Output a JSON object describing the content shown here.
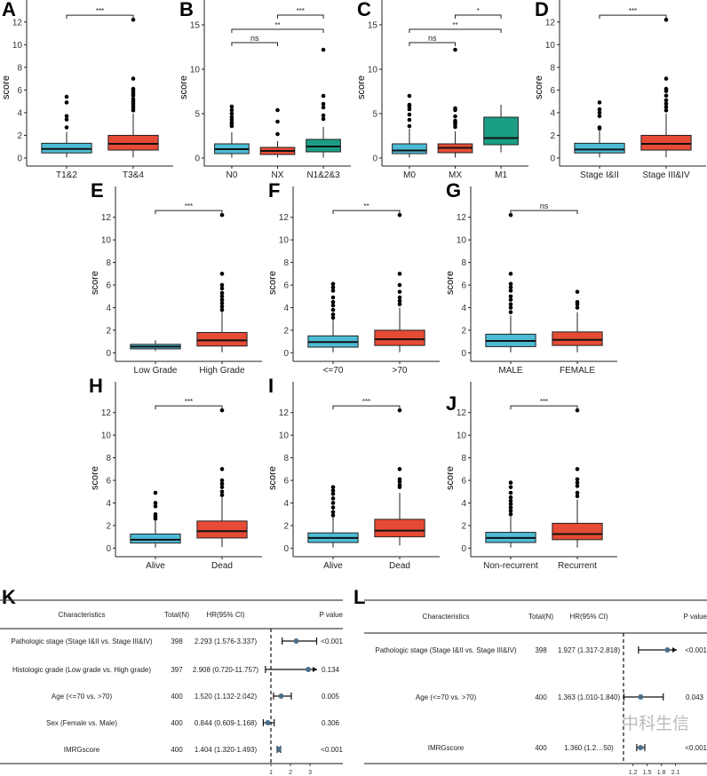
{
  "colors": {
    "blue": "#4DBBD5",
    "red": "#E64B35",
    "green": "#1A9E85"
  },
  "chart_data": [
    {
      "type": "box",
      "panel": "A",
      "ylabel": "score",
      "ylim": [
        -0.55,
        13.0
      ],
      "yticks": [
        0,
        2,
        4,
        6,
        8,
        10,
        12
      ],
      "groups": [
        {
          "name": "T1&2",
          "color": "blue",
          "q1": 0.45,
          "median": 0.8,
          "q3": 1.3,
          "lo": 0.05,
          "hi": 2.3,
          "outliers": [
            2.7,
            3.4,
            3.7,
            4.9,
            5.4
          ]
        },
        {
          "name": "T3&4",
          "color": "red",
          "q1": 0.7,
          "median": 1.25,
          "q3": 2.0,
          "lo": 0.05,
          "hi": 3.9,
          "outliers": [
            4.2,
            4.4,
            4.6,
            4.8,
            5.0,
            5.2,
            5.5,
            5.7,
            5.9,
            6.1,
            7.0,
            12.2
          ]
        }
      ],
      "comparisons": [
        {
          "from": 0,
          "to": 1,
          "y": 12.6,
          "label": "***"
        }
      ]
    },
    {
      "type": "box",
      "panel": "B",
      "ylabel": "score",
      "ylim": [
        -0.7,
        16.6
      ],
      "yticks": [
        0,
        5,
        10,
        15
      ],
      "groups": [
        {
          "name": "N0",
          "color": "blue",
          "q1": 0.5,
          "median": 1.0,
          "q3": 1.6,
          "lo": 0.05,
          "hi": 2.9,
          "outliers": [
            3.6,
            3.8,
            4.0,
            4.3,
            4.6,
            5.0,
            5.4,
            5.8
          ]
        },
        {
          "name": "NX",
          "color": "red",
          "q1": 0.4,
          "median": 0.8,
          "q3": 1.2,
          "lo": 0.05,
          "hi": 1.9,
          "outliers": [
            2.7,
            4.1,
            5.4
          ]
        },
        {
          "name": "N1&2&3",
          "color": "green",
          "q1": 0.7,
          "median": 1.3,
          "q3": 2.1,
          "lo": 0.05,
          "hi": 3.5,
          "outliers": [
            4.4,
            4.8,
            5.7,
            6.1,
            7.0,
            12.2
          ]
        }
      ],
      "comparisons": [
        {
          "from": 0,
          "to": 1,
          "y": 13.0,
          "label": "ns"
        },
        {
          "from": 0,
          "to": 2,
          "y": 14.5,
          "label": "**"
        },
        {
          "from": 1,
          "to": 2,
          "y": 16.1,
          "label": "***"
        }
      ]
    },
    {
      "type": "box",
      "panel": "C",
      "ylabel": "score",
      "ylim": [
        -0.7,
        16.6
      ],
      "yticks": [
        0,
        5,
        10,
        15
      ],
      "groups": [
        {
          "name": "M0",
          "color": "blue",
          "q1": 0.5,
          "median": 0.85,
          "q3": 1.6,
          "lo": 0.05,
          "hi": 3.3,
          "outliers": [
            3.6,
            4.3,
            4.9,
            5.5,
            5.8,
            6.0,
            7.0
          ]
        },
        {
          "name": "MX",
          "color": "red",
          "q1": 0.6,
          "median": 1.15,
          "q3": 1.6,
          "lo": 0.05,
          "hi": 3.0,
          "outliers": [
            3.5,
            3.8,
            4.0,
            4.2,
            4.7,
            5.4,
            5.6,
            12.2
          ]
        },
        {
          "name": "M1",
          "color": "green",
          "q1": 1.5,
          "median": 2.25,
          "q3": 4.6,
          "lo": 0.65,
          "hi": 6.0,
          "outliers": []
        }
      ],
      "comparisons": [
        {
          "from": 0,
          "to": 1,
          "y": 13.0,
          "label": "ns"
        },
        {
          "from": 0,
          "to": 2,
          "y": 14.5,
          "label": "**"
        },
        {
          "from": 1,
          "to": 2,
          "y": 16.1,
          "label": "*"
        }
      ]
    },
    {
      "type": "box",
      "panel": "D",
      "ylabel": "score",
      "ylim": [
        -0.55,
        13.0
      ],
      "yticks": [
        0,
        2,
        4,
        6,
        8,
        10,
        12
      ],
      "groups": [
        {
          "name": "Stage I&II",
          "color": "blue",
          "q1": 0.45,
          "median": 0.75,
          "q3": 1.3,
          "lo": 0.05,
          "hi": 2.4,
          "outliers": [
            2.6,
            2.7,
            3.7,
            4.0,
            4.3,
            4.9
          ]
        },
        {
          "name": "Stage III&IV",
          "color": "red",
          "q1": 0.7,
          "median": 1.25,
          "q3": 2.0,
          "lo": 0.05,
          "hi": 3.9,
          "outliers": [
            4.2,
            4.5,
            4.8,
            5.1,
            5.5,
            5.9,
            6.1,
            7.0,
            12.2
          ]
        }
      ],
      "comparisons": [
        {
          "from": 0,
          "to": 1,
          "y": 12.6,
          "label": "***"
        }
      ]
    },
    {
      "type": "box",
      "panel": "E",
      "ylabel": "score",
      "ylim": [
        -0.6,
        13.0
      ],
      "yticks": [
        0,
        2,
        4,
        6,
        8,
        10,
        12
      ],
      "groups": [
        {
          "name": "Low Grade",
          "color": "blue",
          "q1": 0.35,
          "median": 0.55,
          "q3": 0.75,
          "lo": 0.15,
          "hi": 1.1,
          "outliers": []
        },
        {
          "name": "High Grade",
          "color": "red",
          "q1": 0.6,
          "median": 1.1,
          "q3": 1.8,
          "lo": 0.05,
          "hi": 3.6,
          "outliers": [
            3.8,
            4.1,
            4.4,
            4.7,
            5.0,
            5.3,
            5.7,
            6.0,
            7.0,
            12.2
          ]
        }
      ],
      "comparisons": [
        {
          "from": 0,
          "to": 1,
          "y": 12.6,
          "label": "***"
        }
      ]
    },
    {
      "type": "box",
      "panel": "F",
      "ylabel": "score",
      "ylim": [
        -0.6,
        13.0
      ],
      "yticks": [
        0,
        2,
        4,
        6,
        8,
        10,
        12
      ],
      "groups": [
        {
          "name": "<=70",
          "color": "blue",
          "q1": 0.5,
          "median": 0.95,
          "q3": 1.5,
          "lo": 0.05,
          "hi": 2.9,
          "outliers": [
            3.1,
            3.4,
            3.8,
            4.2,
            4.5,
            4.9,
            5.5,
            5.8,
            6.1
          ]
        },
        {
          "name": ">70",
          "color": "red",
          "q1": 0.65,
          "median": 1.2,
          "q3": 2.0,
          "lo": 0.05,
          "hi": 4.0,
          "outliers": [
            4.3,
            4.6,
            4.9,
            5.4,
            6.0,
            7.0,
            12.2
          ]
        }
      ],
      "comparisons": [
        {
          "from": 0,
          "to": 1,
          "y": 12.6,
          "label": "**"
        }
      ]
    },
    {
      "type": "box",
      "panel": "G",
      "ylabel": "score",
      "ylim": [
        -0.6,
        13.0
      ],
      "yticks": [
        0,
        2,
        4,
        6,
        8,
        10,
        12
      ],
      "groups": [
        {
          "name": "MALE",
          "color": "blue",
          "q1": 0.55,
          "median": 1.05,
          "q3": 1.65,
          "lo": 0.05,
          "hi": 3.3,
          "outliers": [
            3.6,
            4.0,
            4.3,
            4.7,
            5.0,
            5.5,
            5.8,
            6.1,
            7.0,
            12.2
          ]
        },
        {
          "name": "FEMALE",
          "color": "red",
          "q1": 0.65,
          "median": 1.15,
          "q3": 1.85,
          "lo": 0.05,
          "hi": 3.6,
          "outliers": [
            4.0,
            4.3,
            4.5,
            5.4
          ]
        }
      ],
      "comparisons": [
        {
          "from": 0,
          "to": 1,
          "y": 12.6,
          "label": "ns"
        }
      ]
    },
    {
      "type": "box",
      "panel": "H",
      "ylabel": "score",
      "ylim": [
        -0.6,
        13.0
      ],
      "yticks": [
        0,
        2,
        4,
        6,
        8,
        10,
        12
      ],
      "groups": [
        {
          "name": "Alive",
          "color": "blue",
          "q1": 0.45,
          "median": 0.75,
          "q3": 1.25,
          "lo": 0.05,
          "hi": 2.4,
          "outliers": [
            2.6,
            2.8,
            3.0,
            3.7,
            4.0,
            4.9
          ]
        },
        {
          "name": "Dead",
          "color": "red",
          "q1": 0.9,
          "median": 1.5,
          "q3": 2.4,
          "lo": 0.1,
          "hi": 4.5,
          "outliers": [
            4.7,
            5.0,
            5.4,
            5.7,
            6.0,
            7.0,
            12.2
          ]
        }
      ],
      "comparisons": [
        {
          "from": 0,
          "to": 1,
          "y": 12.6,
          "label": "***"
        }
      ]
    },
    {
      "type": "box",
      "panel": "I",
      "ylabel": "score",
      "ylim": [
        -0.6,
        13.0
      ],
      "yticks": [
        0,
        2,
        4,
        6,
        8,
        10,
        12
      ],
      "groups": [
        {
          "name": "Alive",
          "color": "blue",
          "q1": 0.5,
          "median": 0.9,
          "q3": 1.35,
          "lo": 0.05,
          "hi": 2.7,
          "outliers": [
            2.9,
            3.2,
            3.6,
            4.0,
            4.4,
            4.8,
            5.1,
            5.4
          ]
        },
        {
          "name": "Dead",
          "color": "red",
          "q1": 1.0,
          "median": 1.55,
          "q3": 2.55,
          "lo": 0.25,
          "hi": 4.9,
          "outliers": [
            5.4,
            5.6,
            5.9,
            6.1,
            7.0,
            12.2
          ]
        }
      ],
      "comparisons": [
        {
          "from": 0,
          "to": 1,
          "y": 12.6,
          "label": "***"
        }
      ]
    },
    {
      "type": "box",
      "panel": "J",
      "ylabel": "score",
      "ylim": [
        -0.6,
        13.0
      ],
      "yticks": [
        0,
        2,
        4,
        6,
        8,
        10,
        12
      ],
      "groups": [
        {
          "name": "Non-recurrent",
          "color": "blue",
          "q1": 0.5,
          "median": 0.9,
          "q3": 1.4,
          "lo": 0.05,
          "hi": 2.8,
          "outliers": [
            3.0,
            3.3,
            3.6,
            3.9,
            4.2,
            4.5,
            4.9,
            5.4,
            5.8
          ]
        },
        {
          "name": "Recurrent",
          "color": "red",
          "q1": 0.75,
          "median": 1.25,
          "q3": 2.2,
          "lo": 0.05,
          "hi": 4.3,
          "outliers": [
            4.6,
            4.9,
            5.5,
            5.8,
            6.1,
            7.0,
            12.2
          ]
        }
      ],
      "comparisons": [
        {
          "from": 0,
          "to": 1,
          "y": 12.6,
          "label": "***"
        }
      ]
    },
    {
      "type": "forest",
      "panel": "K",
      "xlim": [
        0.545,
        3.36
      ],
      "xticks": [
        1,
        2,
        3
      ],
      "ref": 1,
      "headers": {
        "characteristics": "Characteristics",
        "total": "Total(N)",
        "hr": "HR(95% CI)",
        "p": "P value"
      },
      "rows": [
        {
          "label": "Pathologic stage (Stage I&II vs. Stage III&IV)",
          "n": "398",
          "hr_text": "2.293 (1.576-3.337)",
          "p": "<0.001",
          "hr": 2.293,
          "lo": 1.576,
          "hi": 3.337
        },
        {
          "label": "Histologic grade (Low grade vs. High grade)",
          "n": "397",
          "hr_text": "2.908 (0.720-11.757)",
          "p": "0.134",
          "hr": 2.908,
          "lo": 0.72,
          "hi": 11.757
        },
        {
          "label": "Age (<=70 vs. >70)",
          "n": "400",
          "hr_text": "1.520 (1.132-2.042)",
          "p": "0.005",
          "hr": 1.52,
          "lo": 1.132,
          "hi": 2.042
        },
        {
          "label": "Sex (Female vs. Male)",
          "n": "400",
          "hr_text": "0.844 (0.609-1.168)",
          "p": "0.306",
          "hr": 0.844,
          "lo": 0.609,
          "hi": 1.168
        },
        {
          "label": "IMRGscore",
          "n": "400",
          "hr_text": "1.404 (1.320-1.493)",
          "p": "<0.001",
          "hr": 1.404,
          "lo": 1.32,
          "hi": 1.493
        }
      ]
    },
    {
      "type": "forest",
      "panel": "L",
      "xlim": [
        0.963,
        2.126
      ],
      "xticks": [
        1.2,
        1.5,
        1.8,
        2.1
      ],
      "ref": 1,
      "headers": {
        "characteristics": "Characteristics",
        "total": "Total(N)",
        "hr": "HR(95% CI)",
        "p": "P value"
      },
      "rows": [
        {
          "label": "Pathologic stage (Stage I&II vs. Stage III&IV)",
          "n": "398",
          "hr_text": "1.927 (1.317-2.818)",
          "p": "<0.001",
          "hr": 1.927,
          "lo": 1.317,
          "hi": 2.818
        },
        {
          "label": "Age (<=70 vs. >70)",
          "n": "400",
          "hr_text": "1.363 (1.010-1.840)",
          "p": "0.043",
          "hr": 1.363,
          "lo": 1.01,
          "hi": 1.84
        },
        {
          "label": "IMRGscore",
          "n": "400",
          "hr_text": "1.360 (1.2…50)",
          "p": "<0.001",
          "hr": 1.36,
          "lo": 1.28,
          "hi": 1.45
        }
      ]
    }
  ],
  "watermark": "中科生信"
}
